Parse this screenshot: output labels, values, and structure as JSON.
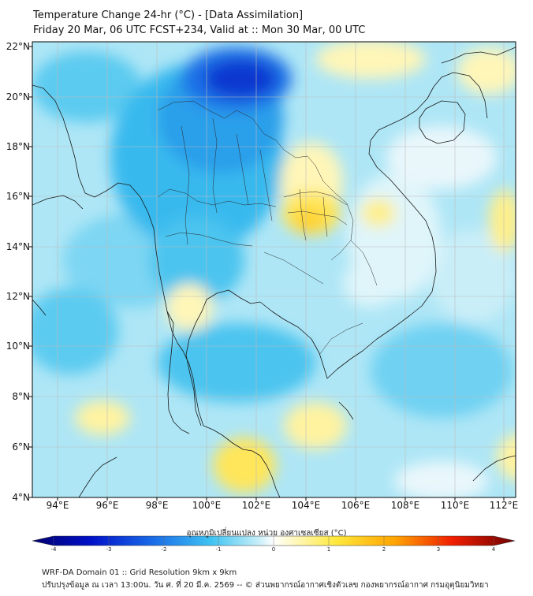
{
  "header": {
    "title_line1": "Temperature Change 24-hr (°C) - [Data Assimilation]",
    "title_line2": "Friday 20 Mar, 06 UTC FCST+234, Valid at :: Mon 30 Mar, 00 UTC"
  },
  "map": {
    "lat_labels": [
      "22°N",
      "20°N",
      "18°N",
      "16°N",
      "14°N",
      "12°N",
      "10°N",
      "8°N",
      "6°N",
      "4°N"
    ],
    "lon_labels": [
      "94°E",
      "96°E",
      "98°E",
      "100°E",
      "102°E",
      "104°E",
      "106°E",
      "108°E",
      "110°E",
      "112°E"
    ],
    "colors": {
      "frame": "#000000",
      "grid": "#bcbcbc",
      "coast": "#1a1a1a",
      "neutral": "#e9f7fb",
      "light_blue": "#8fdcf3",
      "mid_blue": "#30b7ee",
      "strong_blue": "#1e6fe6",
      "deep_blue": "#0a38d0",
      "pale_yellow": "#fff6b8",
      "yellow": "#ffe65a",
      "orange_yellow": "#ffd233"
    }
  },
  "colorbar": {
    "title": "อุณหภูมิเปลี่ยนแปลง หน่วย องศาเซลเซียส (°C)",
    "ticks": [
      "-4",
      "-3",
      "-2",
      "-1",
      "0",
      "1",
      "2",
      "3",
      "4"
    ]
  },
  "footer": {
    "line1": "WRF-DA Domain 01 :: Grid Resolution 9km x 9km",
    "line2": "ปรับปรุงข้อมูล ณ เวลา 13:00น. วัน ศ. ที่ 20 มี.ค. 2569 -- © ส่วนพยากรณ์อากาศเชิงตัวเลข กองพยากรณ์อากาศ กรมอุตุนิยมวิทยา"
  }
}
